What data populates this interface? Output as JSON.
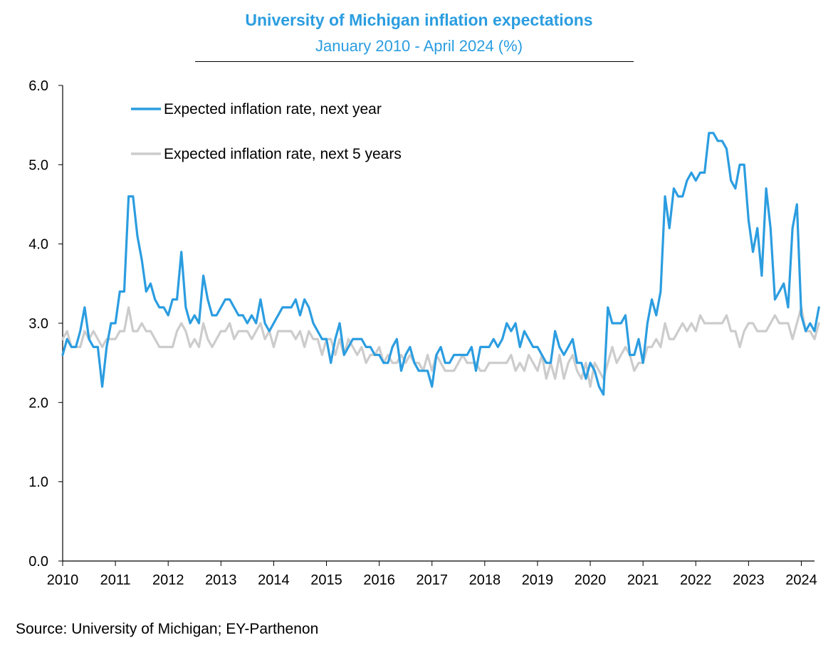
{
  "chart_data": {
    "type": "line",
    "title": "University of Michigan inflation expectations",
    "subtitle": "January 2010 - April 2024 (%)",
    "source": "Source: University of Michigan; EY-Parthenon",
    "ylim": [
      0,
      6
    ],
    "y_ticks": [
      "0.0",
      "1.0",
      "2.0",
      "3.0",
      "4.0",
      "5.0",
      "6.0"
    ],
    "x_ticks": [
      "2010",
      "2011",
      "2012",
      "2013",
      "2014",
      "2015",
      "2016",
      "2017",
      "2018",
      "2019",
      "2020",
      "2021",
      "2022",
      "2023",
      "2024"
    ],
    "x_start": "2010-01",
    "x_end": "2024-04",
    "grid": false,
    "legend_position": "top-left",
    "series": [
      {
        "name": "Expected inflation rate, next year",
        "color": "#2b9de0",
        "values": [
          2.6,
          2.8,
          2.7,
          2.7,
          2.9,
          3.2,
          2.8,
          2.7,
          2.7,
          2.2,
          2.7,
          3.0,
          3.0,
          3.4,
          3.4,
          4.6,
          4.6,
          4.1,
          3.8,
          3.4,
          3.5,
          3.3,
          3.2,
          3.2,
          3.1,
          3.3,
          3.3,
          3.9,
          3.2,
          3.0,
          3.1,
          3.0,
          3.6,
          3.3,
          3.1,
          3.1,
          3.2,
          3.3,
          3.3,
          3.2,
          3.1,
          3.1,
          3.0,
          3.1,
          3.0,
          3.3,
          3.0,
          2.9,
          3.0,
          3.1,
          3.2,
          3.2,
          3.2,
          3.3,
          3.1,
          3.3,
          3.2,
          3.0,
          2.9,
          2.8,
          2.8,
          2.5,
          2.8,
          3.0,
          2.6,
          2.7,
          2.8,
          2.8,
          2.8,
          2.7,
          2.7,
          2.6,
          2.6,
          2.5,
          2.5,
          2.7,
          2.8,
          2.4,
          2.6,
          2.7,
          2.5,
          2.4,
          2.4,
          2.4,
          2.2,
          2.6,
          2.7,
          2.5,
          2.5,
          2.6,
          2.6,
          2.6,
          2.6,
          2.7,
          2.4,
          2.7,
          2.7,
          2.7,
          2.8,
          2.7,
          2.8,
          3.0,
          2.9,
          3.0,
          2.7,
          2.9,
          2.8,
          2.7,
          2.7,
          2.6,
          2.5,
          2.5,
          2.9,
          2.7,
          2.6,
          2.7,
          2.8,
          2.5,
          2.5,
          2.3,
          2.5,
          2.4,
          2.2,
          2.1,
          3.2,
          3.0,
          3.0,
          3.0,
          3.1,
          2.6,
          2.6,
          2.8,
          2.5,
          3.0,
          3.3,
          3.1,
          3.4,
          4.6,
          4.2,
          4.7,
          4.6,
          4.6,
          4.8,
          4.9,
          4.8,
          4.9,
          4.9,
          5.4,
          5.4,
          5.3,
          5.3,
          5.2,
          4.8,
          4.7,
          5.0,
          5.0,
          4.3,
          3.9,
          4.2,
          3.6,
          4.7,
          4.2,
          3.3,
          3.4,
          3.5,
          3.2,
          4.2,
          4.5,
          3.1,
          2.9,
          3.0,
          2.9,
          3.2
        ]
      },
      {
        "name": "Expected inflation rate, next 5 years",
        "color": "#cccccc",
        "values": [
          2.8,
          2.9,
          2.7,
          2.7,
          2.7,
          2.9,
          2.8,
          2.9,
          2.8,
          2.7,
          2.8,
          2.8,
          2.8,
          2.9,
          2.9,
          3.2,
          2.9,
          2.9,
          3.0,
          2.9,
          2.9,
          2.8,
          2.7,
          2.7,
          2.7,
          2.7,
          2.9,
          3.0,
          2.9,
          2.7,
          2.8,
          2.7,
          3.0,
          2.8,
          2.7,
          2.8,
          2.9,
          2.9,
          3.0,
          2.8,
          2.9,
          2.9,
          2.9,
          2.8,
          2.9,
          3.0,
          2.8,
          2.9,
          2.7,
          2.9,
          2.9,
          2.9,
          2.9,
          2.8,
          2.9,
          2.7,
          2.9,
          2.8,
          2.8,
          2.6,
          2.8,
          2.8,
          2.6,
          2.8,
          2.6,
          2.8,
          2.7,
          2.6,
          2.7,
          2.5,
          2.6,
          2.6,
          2.7,
          2.5,
          2.6,
          2.5,
          2.5,
          2.6,
          2.5,
          2.6,
          2.5,
          2.5,
          2.4,
          2.6,
          2.4,
          2.6,
          2.5,
          2.4,
          2.4,
          2.4,
          2.5,
          2.6,
          2.5,
          2.5,
          2.5,
          2.4,
          2.4,
          2.5,
          2.5,
          2.5,
          2.5,
          2.5,
          2.6,
          2.4,
          2.5,
          2.4,
          2.6,
          2.5,
          2.4,
          2.6,
          2.3,
          2.5,
          2.3,
          2.6,
          2.3,
          2.5,
          2.6,
          2.4,
          2.3,
          2.5,
          2.2,
          2.5,
          2.4,
          2.3,
          2.5,
          2.7,
          2.5,
          2.6,
          2.7,
          2.6,
          2.4,
          2.5,
          2.5,
          2.7,
          2.7,
          2.8,
          2.7,
          3.0,
          2.8,
          2.8,
          2.9,
          3.0,
          2.9,
          3.0,
          2.9,
          3.1,
          3.0,
          3.0,
          3.0,
          3.0,
          3.0,
          3.1,
          2.9,
          2.9,
          2.7,
          2.9,
          3.0,
          3.0,
          2.9,
          2.9,
          2.9,
          3.0,
          3.1,
          3.0,
          3.0,
          3.0,
          2.8,
          3.0,
          3.2,
          2.9,
          2.9,
          2.8,
          3.0
        ]
      }
    ]
  }
}
